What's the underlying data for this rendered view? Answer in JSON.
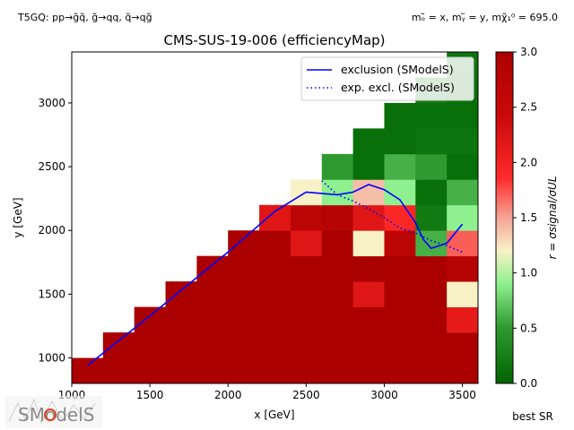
{
  "header": {
    "top_left": "T5GQ: pp→g̃q̃, g̃→qq, q̃→qg̃",
    "top_right": "mₒ̃ = x, mᵧ̃ = y, mχ̃₁⁰ = 695.0"
  },
  "logo": {
    "text": "SModelS"
  },
  "footer": {
    "best_sr_label": "best SR"
  },
  "chart_data": {
    "type": "heatmap",
    "title": "CMS-SUS-19-006 (efficiencyMap)",
    "xlabel": "x [GeV]",
    "ylabel": "y [GeV]",
    "xlim": [
      1000,
      3600
    ],
    "ylim": [
      800,
      3400
    ],
    "xticks": [
      1000,
      1500,
      2000,
      2500,
      3000,
      3500
    ],
    "yticks": [
      1000,
      1500,
      2000,
      2500,
      3000
    ],
    "colorbar": {
      "label": "r = σsignal/σUL",
      "range": [
        0.0,
        3.0
      ],
      "ticks": [
        0.0,
        0.5,
        1.0,
        1.5,
        2.0,
        2.5,
        3.0
      ],
      "colors": {
        "low": "#006400",
        "mid": "#f7f3c4",
        "high_mid": "#ff1010",
        "high": "#b00000"
      }
    },
    "cell_size": 200,
    "cells": [
      {
        "x": 1100,
        "y": 900,
        "r": 3.0
      },
      {
        "x": 1300,
        "y": 900,
        "r": 3.0
      },
      {
        "x": 1500,
        "y": 900,
        "r": 3.0
      },
      {
        "x": 1700,
        "y": 900,
        "r": 3.0
      },
      {
        "x": 1900,
        "y": 900,
        "r": 3.0
      },
      {
        "x": 2100,
        "y": 900,
        "r": 3.0
      },
      {
        "x": 2300,
        "y": 900,
        "r": 3.0
      },
      {
        "x": 2500,
        "y": 900,
        "r": 3.0
      },
      {
        "x": 2700,
        "y": 900,
        "r": 3.0
      },
      {
        "x": 2900,
        "y": 900,
        "r": 3.0
      },
      {
        "x": 3100,
        "y": 900,
        "r": 3.0
      },
      {
        "x": 3300,
        "y": 900,
        "r": 3.0
      },
      {
        "x": 3500,
        "y": 900,
        "r": 3.0
      },
      {
        "x": 1300,
        "y": 1100,
        "r": 3.0
      },
      {
        "x": 1500,
        "y": 1100,
        "r": 3.0
      },
      {
        "x": 1700,
        "y": 1100,
        "r": 3.0
      },
      {
        "x": 1900,
        "y": 1100,
        "r": 3.0
      },
      {
        "x": 2100,
        "y": 1100,
        "r": 3.0
      },
      {
        "x": 2300,
        "y": 1100,
        "r": 3.0
      },
      {
        "x": 2500,
        "y": 1100,
        "r": 3.0
      },
      {
        "x": 2700,
        "y": 1100,
        "r": 3.0
      },
      {
        "x": 2900,
        "y": 1100,
        "r": 3.0
      },
      {
        "x": 3100,
        "y": 1100,
        "r": 3.0
      },
      {
        "x": 3300,
        "y": 1100,
        "r": 3.0
      },
      {
        "x": 3500,
        "y": 1100,
        "r": 3.0
      },
      {
        "x": 1500,
        "y": 1300,
        "r": 3.0
      },
      {
        "x": 1700,
        "y": 1300,
        "r": 3.0
      },
      {
        "x": 1900,
        "y": 1300,
        "r": 3.0
      },
      {
        "x": 2100,
        "y": 1300,
        "r": 3.0
      },
      {
        "x": 2300,
        "y": 1300,
        "r": 3.0
      },
      {
        "x": 2500,
        "y": 1300,
        "r": 3.0
      },
      {
        "x": 2700,
        "y": 1300,
        "r": 3.0
      },
      {
        "x": 2900,
        "y": 1300,
        "r": 3.0
      },
      {
        "x": 3100,
        "y": 1300,
        "r": 3.0
      },
      {
        "x": 3300,
        "y": 1300,
        "r": 3.0
      },
      {
        "x": 3500,
        "y": 1300,
        "r": 2.1
      },
      {
        "x": 1700,
        "y": 1500,
        "r": 3.0
      },
      {
        "x": 1900,
        "y": 1500,
        "r": 3.0
      },
      {
        "x": 2100,
        "y": 1500,
        "r": 3.0
      },
      {
        "x": 2300,
        "y": 1500,
        "r": 3.0
      },
      {
        "x": 2500,
        "y": 1500,
        "r": 3.0
      },
      {
        "x": 2700,
        "y": 1500,
        "r": 3.0
      },
      {
        "x": 2900,
        "y": 1500,
        "r": 2.2
      },
      {
        "x": 3100,
        "y": 1500,
        "r": 3.0
      },
      {
        "x": 3300,
        "y": 1500,
        "r": 3.0
      },
      {
        "x": 3500,
        "y": 1500,
        "r": 1.2
      },
      {
        "x": 1900,
        "y": 1700,
        "r": 3.0
      },
      {
        "x": 2100,
        "y": 1700,
        "r": 3.0
      },
      {
        "x": 2300,
        "y": 1700,
        "r": 3.0
      },
      {
        "x": 2500,
        "y": 1700,
        "r": 3.0
      },
      {
        "x": 2700,
        "y": 1700,
        "r": 3.0
      },
      {
        "x": 2900,
        "y": 1700,
        "r": 3.0
      },
      {
        "x": 3100,
        "y": 1700,
        "r": 3.0
      },
      {
        "x": 3300,
        "y": 1700,
        "r": 3.0
      },
      {
        "x": 3500,
        "y": 1700,
        "r": 2.8
      },
      {
        "x": 2100,
        "y": 1900,
        "r": 3.0
      },
      {
        "x": 2300,
        "y": 1900,
        "r": 3.0
      },
      {
        "x": 2500,
        "y": 1900,
        "r": 2.2
      },
      {
        "x": 2700,
        "y": 1900,
        "r": 3.0
      },
      {
        "x": 2900,
        "y": 1900,
        "r": 1.2
      },
      {
        "x": 3100,
        "y": 1900,
        "r": 2.7
      },
      {
        "x": 3300,
        "y": 1900,
        "r": 0.6
      },
      {
        "x": 3500,
        "y": 1900,
        "r": 1.7
      },
      {
        "x": 2300,
        "y": 2100,
        "r": 2.2
      },
      {
        "x": 2500,
        "y": 2100,
        "r": 2.7
      },
      {
        "x": 2700,
        "y": 2100,
        "r": 2.8
      },
      {
        "x": 2900,
        "y": 2100,
        "r": 2.2
      },
      {
        "x": 3100,
        "y": 2100,
        "r": 1.9
      },
      {
        "x": 3300,
        "y": 2100,
        "r": 0.2
      },
      {
        "x": 3500,
        "y": 2100,
        "r": 0.9
      },
      {
        "x": 2500,
        "y": 2300,
        "r": 1.2
      },
      {
        "x": 2700,
        "y": 2300,
        "r": 0.9
      },
      {
        "x": 2900,
        "y": 2300,
        "r": 1.4
      },
      {
        "x": 3100,
        "y": 2300,
        "r": 0.9
      },
      {
        "x": 3300,
        "y": 2300,
        "r": 0.1
      },
      {
        "x": 3500,
        "y": 2300,
        "r": 0.6
      },
      {
        "x": 2700,
        "y": 2500,
        "r": 0.5
      },
      {
        "x": 2900,
        "y": 2500,
        "r": 0.1
      },
      {
        "x": 3100,
        "y": 2500,
        "r": 0.6
      },
      {
        "x": 3300,
        "y": 2500,
        "r": 0.5
      },
      {
        "x": 3500,
        "y": 2500,
        "r": 0.1
      },
      {
        "x": 2900,
        "y": 2700,
        "r": 0.1
      },
      {
        "x": 3100,
        "y": 2700,
        "r": 0.1
      },
      {
        "x": 3300,
        "y": 2700,
        "r": 0.15
      },
      {
        "x": 3500,
        "y": 2700,
        "r": 0.15
      },
      {
        "x": 3100,
        "y": 2900,
        "r": 0.1
      },
      {
        "x": 3300,
        "y": 2900,
        "r": 0.1
      },
      {
        "x": 3500,
        "y": 2900,
        "r": 0.1
      },
      {
        "x": 3300,
        "y": 3100,
        "r": 0.2
      },
      {
        "x": 3500,
        "y": 3100,
        "r": 0.1
      },
      {
        "x": 3500,
        "y": 3300,
        "r": 0.15
      }
    ],
    "series": [
      {
        "name": "exclusion (SModelS)",
        "style": "solid",
        "color": "#0000ff",
        "points": [
          [
            1100,
            940
          ],
          [
            1500,
            1330
          ],
          [
            2000,
            1830
          ],
          [
            2300,
            2150
          ],
          [
            2500,
            2300
          ],
          [
            2700,
            2280
          ],
          [
            2800,
            2300
          ],
          [
            2900,
            2360
          ],
          [
            3000,
            2320
          ],
          [
            3100,
            2240
          ],
          [
            3200,
            2060
          ],
          [
            3250,
            1930
          ],
          [
            3300,
            1860
          ],
          [
            3400,
            1900
          ],
          [
            3500,
            2050
          ]
        ]
      },
      {
        "name": "exp. excl. (SModelS)",
        "style": "dotted",
        "color": "#0000ff",
        "points": [
          [
            2600,
            2390
          ],
          [
            2700,
            2280
          ],
          [
            2800,
            2230
          ],
          [
            2900,
            2170
          ],
          [
            3000,
            2100
          ],
          [
            3100,
            2020
          ],
          [
            3200,
            1980
          ],
          [
            3300,
            1920
          ],
          [
            3400,
            1880
          ],
          [
            3500,
            1830
          ]
        ]
      }
    ],
    "legend": {
      "position": "top-right"
    },
    "grid": false
  }
}
